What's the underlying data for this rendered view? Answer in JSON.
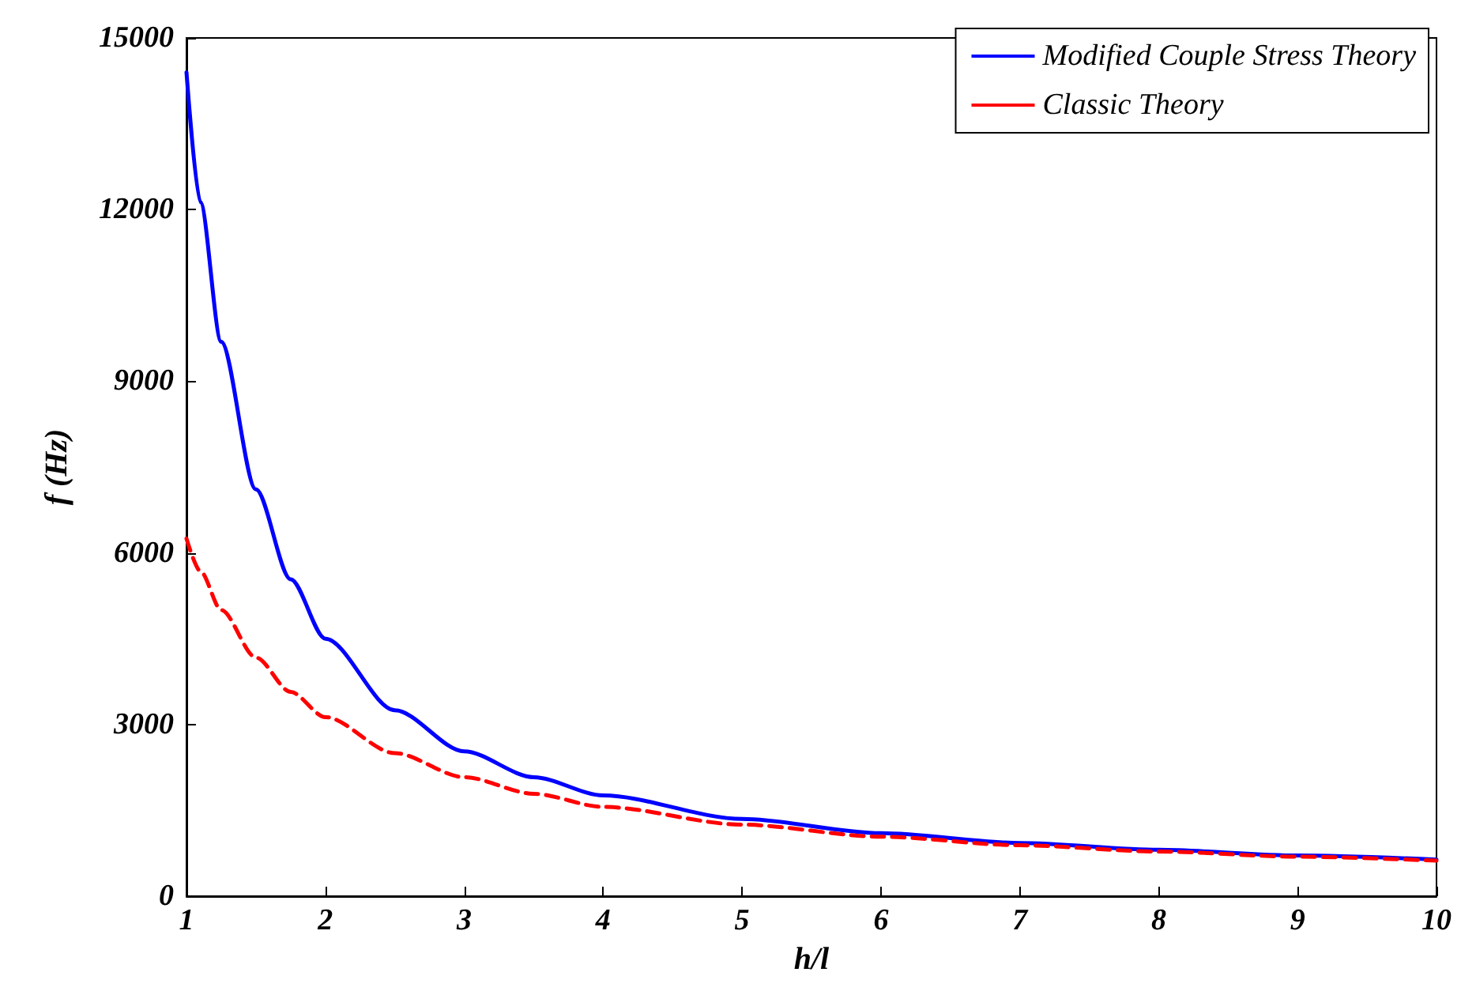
{
  "chart_data": {
    "type": "line",
    "xlabel": "h/l",
    "ylabel": "f (Hz)",
    "xlim": [
      1,
      10
    ],
    "xticks": [
      1,
      2,
      3,
      4,
      5,
      6,
      7,
      8,
      9,
      10
    ],
    "ylim": [
      0,
      15000
    ],
    "yticks": [
      0,
      3000,
      6000,
      9000,
      12000,
      15000
    ],
    "grid": false,
    "legend": "top right",
    "marker": "none",
    "x": [
      1,
      1.1,
      1.25,
      1.5,
      1.75,
      2,
      2.5,
      3,
      3.5,
      4,
      5,
      6,
      7,
      8,
      9,
      10
    ],
    "series": [
      {
        "name": "Modified Couple Stress Theory",
        "color": "#0000ff",
        "line_style": "solid",
        "values": [
          14400,
          12130,
          9690,
          7110,
          5540,
          4500,
          3250,
          2530,
          2080,
          1760,
          1350,
          1100,
          930,
          810,
          710,
          640
        ]
      },
      {
        "name": "Classic Theory",
        "color": "#ff0000",
        "line_style": "dashed",
        "values": [
          6250,
          5680,
          5000,
          4170,
          3570,
          3130,
          2500,
          2080,
          1790,
          1560,
          1250,
          1040,
          890,
          780,
          690,
          620
        ]
      }
    ]
  }
}
